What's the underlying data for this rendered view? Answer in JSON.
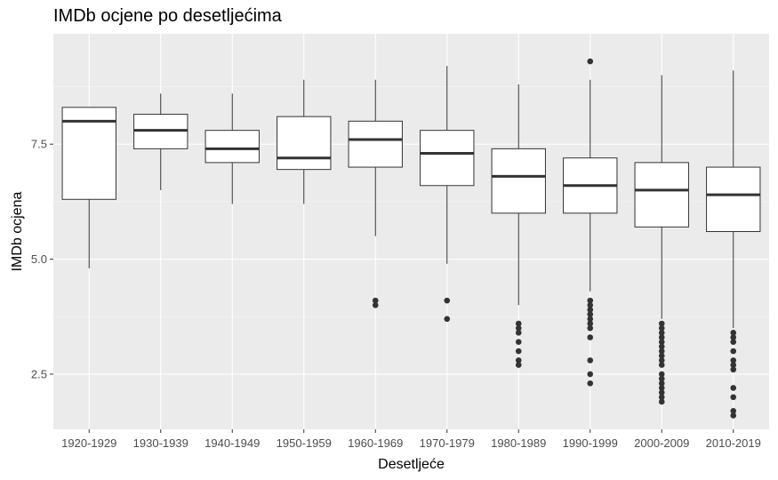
{
  "chart_data": {
    "type": "box",
    "title": "IMDb ocjene po desetljećima",
    "xlabel": "Desetljeće",
    "ylabel": "IMDb ocjena",
    "ylim": [
      1.3,
      9.9
    ],
    "yticks": [
      2.5,
      5.0,
      7.5
    ],
    "ytick_labels": [
      "2.5",
      "5.0",
      "7.5"
    ],
    "categories": [
      "1920-1929",
      "1930-1939",
      "1940-1949",
      "1950-1959",
      "1960-1969",
      "1970-1979",
      "1980-1989",
      "1990-1999",
      "2000-2009",
      "2010-2019"
    ],
    "boxes": [
      {
        "category": "1920-1929",
        "whisker_low": 4.8,
        "q1": 6.3,
        "median": 8.0,
        "q3": 8.3,
        "whisker_high": 8.3,
        "outliers": []
      },
      {
        "category": "1930-1939",
        "whisker_low": 6.5,
        "q1": 7.4,
        "median": 7.8,
        "q3": 8.15,
        "whisker_high": 8.6,
        "outliers": []
      },
      {
        "category": "1940-1949",
        "whisker_low": 6.2,
        "q1": 7.1,
        "median": 7.4,
        "q3": 7.8,
        "whisker_high": 8.6,
        "outliers": []
      },
      {
        "category": "1950-1959",
        "whisker_low": 6.2,
        "q1": 6.95,
        "median": 7.2,
        "q3": 8.1,
        "whisker_high": 8.9,
        "outliers": []
      },
      {
        "category": "1960-1969",
        "whisker_low": 5.5,
        "q1": 7.0,
        "median": 7.6,
        "q3": 8.0,
        "whisker_high": 8.9,
        "outliers": [
          4.1,
          4.0
        ]
      },
      {
        "category": "1970-1979",
        "whisker_low": 4.9,
        "q1": 6.6,
        "median": 7.3,
        "q3": 7.8,
        "whisker_high": 9.2,
        "outliers": [
          4.1,
          3.7
        ]
      },
      {
        "category": "1980-1989",
        "whisker_low": 4.0,
        "q1": 6.0,
        "median": 6.8,
        "q3": 7.4,
        "whisker_high": 8.8,
        "outliers": [
          3.6,
          3.5,
          3.4,
          3.2,
          3.0,
          2.8,
          2.7
        ]
      },
      {
        "category": "1990-1999",
        "whisker_low": 4.3,
        "q1": 6.0,
        "median": 6.6,
        "q3": 7.2,
        "whisker_high": 8.9,
        "outliers": [
          9.3,
          4.1,
          4.0,
          3.9,
          3.8,
          3.7,
          3.6,
          3.5,
          3.3,
          2.8,
          2.5,
          2.3
        ]
      },
      {
        "category": "2000-2009",
        "whisker_low": 3.7,
        "q1": 5.7,
        "median": 6.5,
        "q3": 7.1,
        "whisker_high": 9.0,
        "outliers": [
          3.6,
          3.5,
          3.4,
          3.3,
          3.2,
          3.1,
          3.0,
          2.9,
          2.8,
          2.7,
          2.5,
          2.4,
          2.3,
          2.2,
          2.1,
          2.0,
          1.9
        ]
      },
      {
        "category": "2010-2019",
        "whisker_low": 3.5,
        "q1": 5.6,
        "median": 6.4,
        "q3": 7.0,
        "whisker_high": 9.1,
        "outliers": [
          3.4,
          3.3,
          3.2,
          3.0,
          2.8,
          2.7,
          2.6,
          2.2,
          2.0,
          1.7,
          1.6
        ]
      }
    ],
    "grid": true,
    "legend": "none",
    "colors": {
      "panel_background": "#ebebeb",
      "grid_major": "#ffffff",
      "grid_minor": "#f4f4f4",
      "box_fill": "#ffffff",
      "line": "#333333",
      "outlier": "#333333",
      "tick_text": "#4d4d4d"
    }
  }
}
